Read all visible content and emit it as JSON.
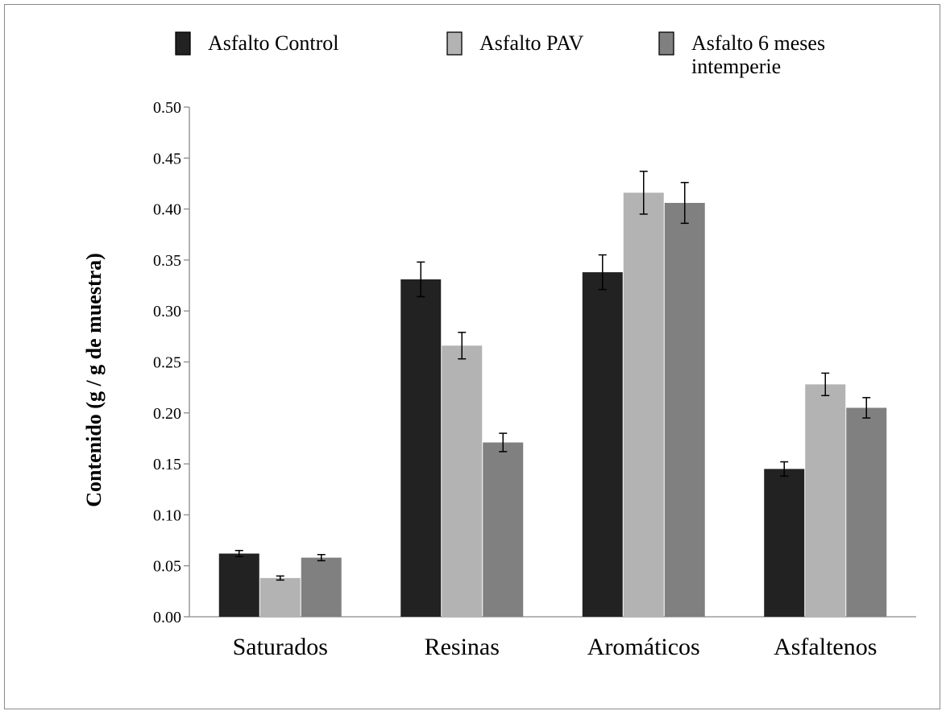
{
  "chart_data": {
    "type": "bar",
    "title": "",
    "xlabel": "",
    "ylabel": "Contenido (g / g de muestra)",
    "ylim": [
      0,
      0.5
    ],
    "y_ticks": [
      "0.00",
      "0.05",
      "0.10",
      "0.15",
      "0.20",
      "0.25",
      "0.30",
      "0.35",
      "0.40",
      "0.45",
      "0.50"
    ],
    "categories": [
      "Saturados",
      "Resinas",
      "Aromáticos",
      "Asfaltenos"
    ],
    "grid": false,
    "legend_position": "top",
    "series": [
      {
        "name_lines": [
          "Asfalto Control"
        ],
        "color": "#222222",
        "values": [
          0.062,
          0.331,
          0.338,
          0.145
        ],
        "errors": [
          0.003,
          0.017,
          0.017,
          0.007
        ]
      },
      {
        "name_lines": [
          "Asfalto PAV"
        ],
        "color": "#b3b3b3",
        "values": [
          0.038,
          0.266,
          0.416,
          0.228
        ],
        "errors": [
          0.002,
          0.013,
          0.021,
          0.011
        ]
      },
      {
        "name_lines": [
          "Asfalto  6 meses",
          "intemperie"
        ],
        "color": "#808080",
        "values": [
          0.058,
          0.171,
          0.406,
          0.205
        ],
        "errors": [
          0.003,
          0.009,
          0.02,
          0.01
        ]
      }
    ]
  }
}
